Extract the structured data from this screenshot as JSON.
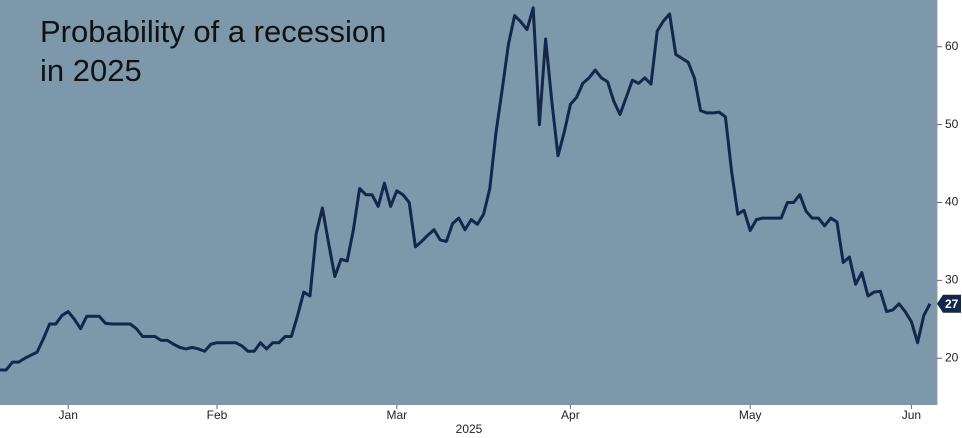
{
  "chart_data": {
    "type": "line",
    "title": [
      "Probability of a recession",
      "in 2025"
    ],
    "x_label": "2025",
    "categories": [
      null,
      null,
      null,
      null,
      null,
      null,
      null,
      null,
      null,
      null,
      null,
      "Jan",
      null,
      null,
      null,
      null,
      null,
      null,
      null,
      null,
      null,
      null,
      null,
      null,
      null,
      null,
      null,
      null,
      null,
      null,
      null,
      null,
      null,
      null,
      null,
      "Feb",
      null,
      null,
      null,
      null,
      null,
      null,
      null,
      null,
      null,
      null,
      null,
      null,
      null,
      null,
      null,
      null,
      null,
      null,
      null,
      null,
      null,
      null,
      null,
      null,
      null,
      null,
      null,
      null,
      "Mar",
      null,
      null,
      null,
      null,
      null,
      null,
      null,
      null,
      null,
      null,
      null,
      null,
      null,
      null,
      null,
      null,
      null,
      null,
      null,
      null,
      null,
      null,
      null,
      null,
      null,
      null,
      null,
      "Apr",
      null,
      null,
      null,
      null,
      null,
      null,
      null,
      null,
      null,
      null,
      null,
      null,
      null,
      null,
      null,
      null,
      null,
      null,
      null,
      null,
      null,
      null,
      null,
      null,
      null,
      null,
      null,
      null,
      "May",
      null,
      null,
      null,
      null,
      null,
      null,
      null,
      null,
      null,
      null,
      null,
      null,
      null,
      null,
      null,
      null,
      null,
      null,
      null,
      null,
      null,
      null,
      null,
      null,
      null,
      "Jun",
      null,
      null,
      null
    ],
    "series": [
      {
        "color": "#13274a",
        "values": [
          18.5,
          18.5,
          19.5,
          19.5,
          20.0,
          20.4,
          20.8,
          22.5,
          24.4,
          24.4,
          25.5,
          26.0,
          25.0,
          23.8,
          25.4,
          25.4,
          25.4,
          24.5,
          24.4,
          24.4,
          24.4,
          24.4,
          23.8,
          22.8,
          22.8,
          22.8,
          22.3,
          22.3,
          21.8,
          21.4,
          21.2,
          21.4,
          21.2,
          20.9,
          21.8,
          22.0,
          22.0,
          22.0,
          22.0,
          21.6,
          20.9,
          20.9,
          22.0,
          21.2,
          22.0,
          22.0,
          22.8,
          22.8,
          25.5,
          28.5,
          28.0,
          36.0,
          39.3,
          34.8,
          30.5,
          32.7,
          32.5,
          36.5,
          41.8,
          41.0,
          41.0,
          39.5,
          42.5,
          39.5,
          41.5,
          41.0,
          40.0,
          34.3,
          35.0,
          35.8,
          36.5,
          35.2,
          35.0,
          37.3,
          38.0,
          36.5,
          37.8,
          37.2,
          38.5,
          41.8,
          49.0,
          54.5,
          60.3,
          64.0,
          63.2,
          62.2,
          65.0,
          50.0,
          61.0,
          53.0,
          46.0,
          49.0,
          52.6,
          53.5,
          55.3,
          56.0,
          57.0,
          56.0,
          55.5,
          53.0,
          51.3,
          53.5,
          55.7,
          55.3,
          56.0,
          55.2,
          62.0,
          63.3,
          64.2,
          59.0,
          58.5,
          58.0,
          56.0,
          51.8,
          51.5,
          51.5,
          51.6,
          51.0,
          44.0,
          38.5,
          39.0,
          36.4,
          37.8,
          38.0,
          38.0,
          38.0,
          38.0,
          40.0,
          40.0,
          41.0,
          38.9,
          38.0,
          38.0,
          37.0,
          38.0,
          37.5,
          32.3,
          33.0,
          29.5,
          31.0,
          28.0,
          28.5,
          28.6,
          26.0,
          26.2,
          27.0,
          26.0,
          24.7,
          22.0,
          25.5,
          27
        ]
      }
    ],
    "ylim": [
      14,
      66
    ],
    "yticks": [
      20,
      30,
      40,
      50,
      60
    ],
    "y_axis_side": "right",
    "background": "#7e98ab",
    "grid": false
  }
}
